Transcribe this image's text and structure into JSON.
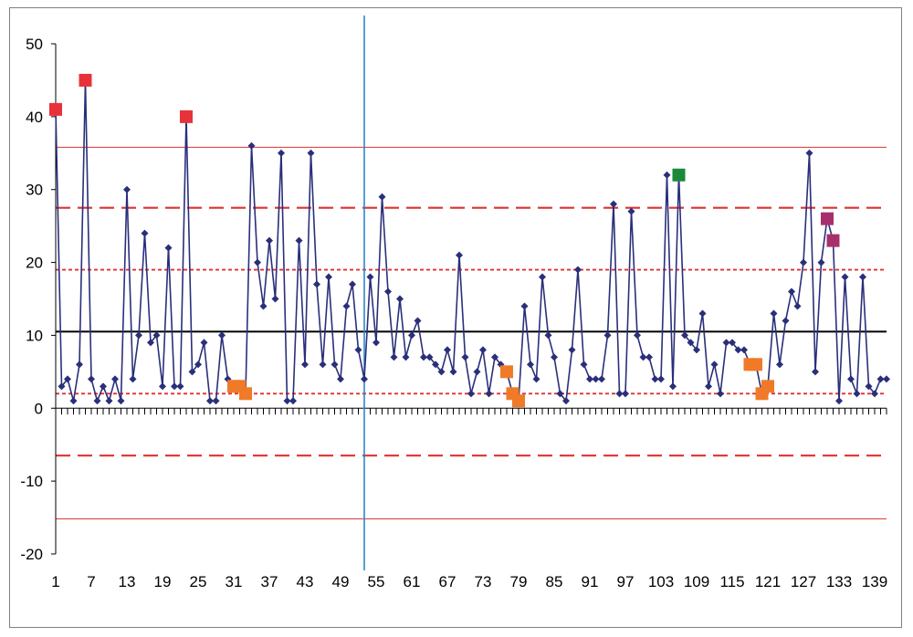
{
  "chart_data": {
    "type": "line",
    "title": "",
    "xlabel": "",
    "ylabel": "",
    "xlim": [
      1,
      141
    ],
    "ylim": [
      -20,
      50
    ],
    "y_ticks": [
      -20,
      -10,
      0,
      10,
      20,
      30,
      40,
      50
    ],
    "y_tick_labels": [
      "-20",
      "-10",
      "0",
      "10",
      "20",
      "30",
      "40",
      "50"
    ],
    "x_tick_labels": [
      1,
      7,
      13,
      19,
      25,
      31,
      37,
      43,
      49,
      55,
      61,
      67,
      73,
      79,
      85,
      91,
      97,
      103,
      109,
      115,
      121,
      127,
      133,
      139
    ],
    "x_tick_label_text": [
      "1",
      "7",
      "13",
      "19",
      "25",
      "31",
      "37",
      "43",
      "49",
      "55",
      "61",
      "67",
      "73",
      "79",
      "85",
      "91",
      "97",
      "103",
      "109",
      "115",
      "121",
      "127",
      "133",
      "139"
    ],
    "grid": false,
    "legend": "none",
    "phase_divider_x": 53,
    "reference_lines": [
      {
        "value": 35.8,
        "style": "thin-solid",
        "color": "#e03030"
      },
      {
        "value": 27.5,
        "style": "long-dash",
        "color": "#e03030"
      },
      {
        "value": 19,
        "style": "short-dash",
        "color": "#e03030"
      },
      {
        "value": 10.5,
        "style": "solid",
        "color": "#000000"
      },
      {
        "value": 2,
        "style": "short-dash",
        "color": "#e03030"
      },
      {
        "value": -6.5,
        "style": "long-dash",
        "color": "#e03030"
      },
      {
        "value": -15.2,
        "style": "thin-solid",
        "color": "#e03030"
      }
    ],
    "series": [
      {
        "color": "#2a2f7a",
        "marker": "diamond",
        "x": [
          1,
          2,
          3,
          4,
          5,
          6,
          7,
          8,
          9,
          10,
          11,
          12,
          13,
          14,
          15,
          16,
          17,
          18,
          19,
          20,
          21,
          22,
          23,
          24,
          25,
          26,
          27,
          28,
          29,
          30,
          31,
          32,
          33,
          34,
          35,
          36,
          37,
          38,
          39,
          40,
          41,
          42,
          43,
          44,
          45,
          46,
          47,
          48,
          49,
          50,
          51,
          52,
          53,
          54,
          55,
          56,
          57,
          58,
          59,
          60,
          61,
          62,
          63,
          64,
          65,
          66,
          67,
          68,
          69,
          70,
          71,
          72,
          73,
          74,
          75,
          76,
          77,
          78,
          79,
          80,
          81,
          82,
          83,
          84,
          85,
          86,
          87,
          88,
          89,
          90,
          91,
          92,
          93,
          94,
          95,
          96,
          97,
          98,
          99,
          100,
          101,
          102,
          103,
          104,
          105,
          106,
          107,
          108,
          109,
          110,
          111,
          112,
          113,
          114,
          115,
          116,
          117,
          118,
          119,
          120,
          121,
          122,
          123,
          124,
          125,
          126,
          127,
          128,
          129,
          130,
          131,
          132,
          133,
          134,
          135,
          136,
          137,
          138,
          139,
          140,
          141
        ],
        "values": [
          41,
          3,
          4,
          1,
          6,
          45,
          4,
          1,
          3,
          1,
          4,
          1,
          30,
          4,
          10,
          24,
          9,
          10,
          3,
          22,
          3,
          3,
          40,
          5,
          6,
          9,
          1,
          1,
          10,
          4,
          3,
          3,
          2,
          36,
          20,
          14,
          23,
          15,
          35,
          1,
          1,
          23,
          6,
          35,
          17,
          6,
          18,
          6,
          4,
          14,
          17,
          8,
          4,
          18,
          9,
          29,
          16,
          7,
          15,
          7,
          10,
          12,
          7,
          7,
          6,
          5,
          8,
          5,
          21,
          7,
          2,
          5,
          8,
          2,
          7,
          6,
          5,
          2,
          1,
          14,
          6,
          4,
          18,
          10,
          7,
          2,
          1,
          8,
          19,
          6,
          4,
          4,
          4,
          10,
          28,
          2,
          2,
          27,
          10,
          7,
          7,
          4,
          4,
          32,
          3,
          32,
          10,
          9,
          8,
          13,
          3,
          6,
          2,
          9,
          9,
          8,
          8,
          6,
          6,
          2,
          3,
          13,
          6,
          12,
          16,
          14,
          20,
          35,
          5,
          20,
          26,
          23,
          1,
          18,
          4,
          2,
          18,
          3,
          2,
          4,
          4
        ]
      }
    ],
    "highlighted_points": [
      {
        "x": 1,
        "value": 41,
        "color": "#e8323a"
      },
      {
        "x": 6,
        "value": 45,
        "color": "#e8323a"
      },
      {
        "x": 23,
        "value": 40,
        "color": "#e8323a"
      },
      {
        "x": 31,
        "value": 3,
        "color": "#f07a28"
      },
      {
        "x": 32,
        "value": 3,
        "color": "#f07a28"
      },
      {
        "x": 33,
        "value": 2,
        "color": "#f07a28"
      },
      {
        "x": 77,
        "value": 5,
        "color": "#f07a28"
      },
      {
        "x": 78,
        "value": 2,
        "color": "#f07a28"
      },
      {
        "x": 79,
        "value": 1,
        "color": "#f07a28"
      },
      {
        "x": 106,
        "value": 32,
        "color": "#1a8a3a"
      },
      {
        "x": 118,
        "value": 6,
        "color": "#f07a28"
      },
      {
        "x": 119,
        "value": 6,
        "color": "#f07a28"
      },
      {
        "x": 120,
        "value": 2,
        "color": "#f07a28"
      },
      {
        "x": 121,
        "value": 3,
        "color": "#f07a28"
      },
      {
        "x": 131,
        "value": 26,
        "color": "#a8306a"
      },
      {
        "x": 132,
        "value": 23,
        "color": "#a8306a"
      }
    ]
  }
}
